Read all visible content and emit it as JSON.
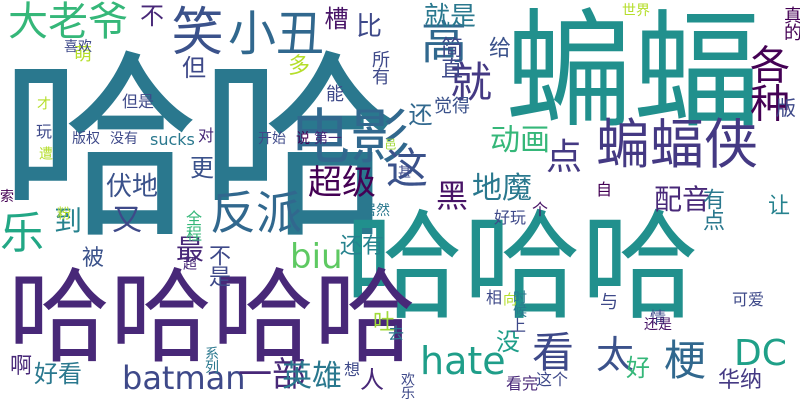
{
  "word_cloud": {
    "words": [
      {
        "text": "哈哈",
        "color": "#2a788e"
      },
      {
        "text": "蝙蝠",
        "color": "#21908d"
      },
      {
        "text": "哈哈哈",
        "color": "#21908d"
      },
      {
        "text": "哈哈哈哈",
        "color": "#482878"
      },
      {
        "text": "电影",
        "color": "#31688e"
      },
      {
        "text": "蝙蝠侠",
        "color": "#443983"
      },
      {
        "text": "笑",
        "color": "#3b528b"
      },
      {
        "text": "高",
        "color": "#31688e"
      },
      {
        "text": "大老爷",
        "color": "#35b779"
      },
      {
        "text": "小丑",
        "color": "#31688e"
      },
      {
        "text": "反派",
        "color": "#31688e"
      },
      {
        "text": "乐",
        "color": "#22a785"
      },
      {
        "text": "这",
        "color": "#3b528b"
      },
      {
        "text": "各种",
        "color": "#440154"
      },
      {
        "text": "就",
        "color": "#443983"
      },
      {
        "text": "hate",
        "color": "#1f9e89"
      },
      {
        "text": "看",
        "color": "#3e4989"
      },
      {
        "text": "梗",
        "color": "#31688e"
      },
      {
        "text": "DC",
        "color": "#1fa088"
      },
      {
        "text": "太",
        "color": "#3b528b"
      },
      {
        "text": "超级",
        "color": "#440154"
      },
      {
        "text": "biu",
        "color": "#5ec962"
      },
      {
        "text": "batman",
        "color": "#3e4989"
      },
      {
        "text": "一部",
        "color": "#482878"
      },
      {
        "text": "英雄",
        "color": "#2a788e"
      },
      {
        "text": "动画",
        "color": "#35b779"
      },
      {
        "text": "地魔",
        "color": "#2a788e"
      },
      {
        "text": "点",
        "color": "#443983"
      },
      {
        "text": "黑",
        "color": "#481467"
      },
      {
        "text": "配音",
        "color": "#482878"
      },
      {
        "text": "伏地",
        "color": "#3b528b"
      },
      {
        "text": "又",
        "color": "#3e4989"
      },
      {
        "text": "最",
        "color": "#482878"
      },
      {
        "text": "到",
        "color": "#26828e"
      },
      {
        "text": "就是",
        "color": "#2a788e"
      },
      {
        "text": "比",
        "color": "#3e4989"
      },
      {
        "text": "槽",
        "color": "#481467"
      },
      {
        "text": "不",
        "color": "#482878"
      },
      {
        "text": "但",
        "color": "#3e4989"
      },
      {
        "text": "还",
        "color": "#31688e"
      },
      {
        "text": "给",
        "color": "#3b528b"
      },
      {
        "text": "简直",
        "color": "#3e4989"
      },
      {
        "text": "更",
        "color": "#3b528b"
      },
      {
        "text": "被",
        "color": "#3b528b"
      },
      {
        "text": "不是",
        "color": "#3e4989"
      },
      {
        "text": "还有",
        "color": "#26828e"
      },
      {
        "text": "吐",
        "color": "#a0da39"
      },
      {
        "text": "没",
        "color": "#1f9e89"
      },
      {
        "text": "好",
        "color": "#35b779"
      },
      {
        "text": "啊",
        "color": "#482878"
      },
      {
        "text": "好看",
        "color": "#2a788e"
      },
      {
        "text": "人",
        "color": "#482878"
      },
      {
        "text": "华纳",
        "color": "#443983"
      },
      {
        "text": "有点",
        "color": "#2a788e"
      },
      {
        "text": "让",
        "color": "#26828e"
      },
      {
        "text": "版",
        "color": "#3e4989"
      },
      {
        "text": "真的",
        "color": "#440154"
      },
      {
        "text": "多",
        "color": "#b5de2b"
      },
      {
        "text": "萌",
        "color": "#b5de2b"
      },
      {
        "text": "能",
        "color": "#3e4989"
      },
      {
        "text": "所有",
        "color": "#3e4989"
      },
      {
        "text": "觉得",
        "color": "#3b528b"
      },
      {
        "text": "世界",
        "color": "#b5de2b"
      },
      {
        "text": "喜欢",
        "color": "#3e4989"
      },
      {
        "text": "才",
        "color": "#b5de2b"
      },
      {
        "text": "但是",
        "color": "#3e4989"
      },
      {
        "text": "玩",
        "color": "#3e4989"
      },
      {
        "text": "遭",
        "color": "#b5de2b"
      },
      {
        "text": "版权",
        "color": "#3e4989"
      },
      {
        "text": "没有",
        "color": "#3e4989"
      },
      {
        "text": "sucks",
        "color": "#2a788e"
      },
      {
        "text": "对",
        "color": "#482878"
      },
      {
        "text": "开始",
        "color": "#3e4989"
      },
      {
        "text": "说",
        "color": "#440154"
      },
      {
        "text": "第一",
        "color": "#482878"
      },
      {
        "text": "邑",
        "color": "#a0da39"
      },
      {
        "text": "甚",
        "color": "#3e4989"
      },
      {
        "text": "自",
        "color": "#440154"
      },
      {
        "text": "个",
        "color": "#481467"
      },
      {
        "text": "好玩",
        "color": "#3e4989"
      },
      {
        "text": "居然",
        "color": "#2a788e"
      },
      {
        "text": "全程",
        "color": "#35b779"
      },
      {
        "text": "粉",
        "color": "#b5de2b"
      },
      {
        "text": "索",
        "color": "#440154"
      },
      {
        "text": "超",
        "color": "#482878"
      },
      {
        "text": "相",
        "color": "#3e4989"
      },
      {
        "text": "向",
        "color": "#b5de2b"
      },
      {
        "text": "时候",
        "color": "#2a788e"
      },
      {
        "text": "与",
        "color": "#3e4989"
      },
      {
        "text": "情",
        "color": "#3e4989"
      },
      {
        "text": "可爱",
        "color": "#3e4989"
      },
      {
        "text": "还是",
        "color": "#481467"
      },
      {
        "text": "去",
        "color": "#2a788e"
      },
      {
        "text": "上",
        "color": "#3e4989"
      },
      {
        "text": "系列",
        "color": "#2a788e"
      },
      {
        "text": "想",
        "color": "#3e4989"
      },
      {
        "text": "欢乐",
        "color": "#3e4989"
      },
      {
        "text": "看完",
        "color": "#482878"
      },
      {
        "text": "这个",
        "color": "#3e4989"
      }
    ]
  }
}
